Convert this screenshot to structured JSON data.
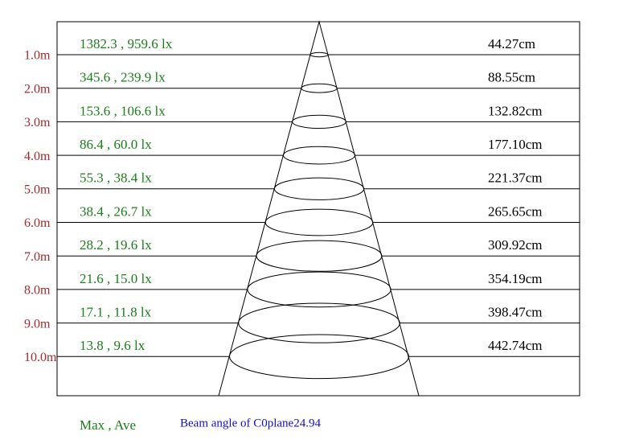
{
  "rows": [
    {
      "distance": "1.0m",
      "illuminance": "1382.3 , 959.6 lx",
      "diameter": "44.27cm"
    },
    {
      "distance": "2.0m",
      "illuminance": "345.6 , 239.9 lx",
      "diameter": "88.55cm"
    },
    {
      "distance": "3.0m",
      "illuminance": "153.6 , 106.6 lx",
      "diameter": "132.82cm"
    },
    {
      "distance": "4.0m",
      "illuminance": "86.4 , 60.0 lx",
      "diameter": "177.10cm"
    },
    {
      "distance": "5.0m",
      "illuminance": "55.3 , 38.4 lx",
      "diameter": "221.37cm"
    },
    {
      "distance": "6.0m",
      "illuminance": "38.4 , 26.7 lx",
      "diameter": "265.65cm"
    },
    {
      "distance": "7.0m",
      "illuminance": "28.2 , 19.6 lx",
      "diameter": "309.92cm"
    },
    {
      "distance": "8.0m",
      "illuminance": "21.6 , 15.0 lx",
      "diameter": "354.19cm"
    },
    {
      "distance": "9.0m",
      "illuminance": "17.1 , 11.8 lx",
      "diameter": "398.47cm"
    },
    {
      "distance": "10.0m",
      "illuminance": "13.8 , 9.6 lx",
      "diameter": "442.74cm"
    }
  ],
  "footer": {
    "legend": "Max , Ave",
    "beam_angle": "Beam angle of C0plane24.94"
  }
}
